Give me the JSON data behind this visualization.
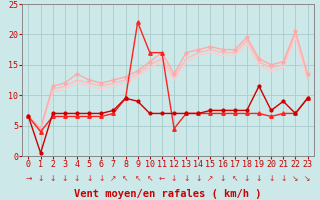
{
  "title": "",
  "xlabel": "Vent moyen/en rafales ( km/h )",
  "ylabel": "",
  "xlim": [
    -0.5,
    23.5
  ],
  "ylim": [
    0,
    25
  ],
  "xticks": [
    0,
    1,
    2,
    3,
    4,
    5,
    6,
    7,
    8,
    9,
    10,
    11,
    12,
    13,
    14,
    15,
    16,
    17,
    18,
    19,
    20,
    21,
    22,
    23
  ],
  "yticks": [
    0,
    5,
    10,
    15,
    20,
    25
  ],
  "bg_color": "#cce8e8",
  "grid_color": "#aacccc",
  "series": [
    {
      "x": [
        0,
        1,
        2,
        3,
        4,
        5,
        6,
        7,
        8,
        9,
        10,
        11,
        12,
        13,
        14,
        15,
        16,
        17,
        18,
        19,
        20,
        21,
        22,
        23
      ],
      "y": [
        6.5,
        4.5,
        11.5,
        12.0,
        13.5,
        12.5,
        12.0,
        12.5,
        13.0,
        14.0,
        15.5,
        17.0,
        13.5,
        17.0,
        17.5,
        18.0,
        17.5,
        17.5,
        19.5,
        16.0,
        15.0,
        15.5,
        20.5,
        13.5
      ],
      "color": "#ffaaaa",
      "marker": "o",
      "markersize": 2.0,
      "linewidth": 1.0
    },
    {
      "x": [
        0,
        1,
        2,
        3,
        4,
        5,
        6,
        7,
        8,
        9,
        10,
        11,
        12,
        13,
        14,
        15,
        16,
        17,
        18,
        19,
        20,
        21,
        22,
        23
      ],
      "y": [
        6.5,
        4.5,
        11.0,
        11.5,
        12.5,
        12.0,
        11.5,
        12.0,
        12.5,
        13.5,
        15.0,
        16.0,
        13.0,
        16.0,
        17.0,
        17.5,
        17.0,
        17.0,
        19.0,
        15.5,
        14.5,
        15.0,
        20.0,
        13.0
      ],
      "color": "#ffbbbb",
      "marker": null,
      "markersize": 0,
      "linewidth": 1.0
    },
    {
      "x": [
        0,
        1,
        2,
        3,
        4,
        5,
        6,
        7,
        8,
        9,
        10,
        11,
        12,
        13,
        14,
        15,
        16,
        17,
        18,
        19,
        20,
        21,
        22,
        23
      ],
      "y": [
        6.5,
        4.5,
        10.5,
        11.0,
        12.0,
        11.5,
        11.0,
        11.5,
        12.0,
        13.0,
        14.5,
        15.5,
        12.5,
        15.5,
        16.5,
        17.0,
        16.5,
        16.5,
        18.5,
        15.0,
        14.0,
        14.5,
        19.5,
        12.5
      ],
      "color": "#ffcccc",
      "marker": null,
      "markersize": 0,
      "linewidth": 1.0
    },
    {
      "x": [
        0,
        1,
        2,
        3,
        4,
        5,
        6,
        7,
        8,
        9,
        10,
        11,
        12,
        13,
        14,
        15,
        16,
        17,
        18,
        19,
        20,
        21,
        22,
        23
      ],
      "y": [
        6.5,
        4.0,
        6.5,
        6.5,
        6.5,
        6.5,
        6.5,
        7.0,
        9.5,
        22.0,
        17.0,
        17.0,
        4.5,
        7.0,
        7.0,
        7.0,
        7.0,
        7.0,
        7.0,
        7.0,
        6.5,
        7.0,
        7.0,
        9.5
      ],
      "color": "#ff2222",
      "marker": "^",
      "markersize": 2.5,
      "linewidth": 1.0
    },
    {
      "x": [
        0,
        1,
        2,
        3,
        4,
        5,
        6,
        7,
        8,
        9,
        10,
        11,
        12,
        13,
        14,
        15,
        16,
        17,
        18,
        19,
        20,
        21,
        22,
        23
      ],
      "y": [
        6.5,
        0.5,
        7.0,
        7.0,
        7.0,
        7.0,
        7.0,
        7.5,
        9.5,
        9.0,
        7.0,
        7.0,
        7.0,
        7.0,
        7.0,
        7.5,
        7.5,
        7.5,
        7.5,
        11.5,
        7.5,
        9.0,
        7.0,
        9.5
      ],
      "color": "#cc0000",
      "marker": "o",
      "markersize": 2.0,
      "linewidth": 1.0
    }
  ],
  "arrow_chars": [
    "→",
    "↓",
    "↓",
    "↓",
    "↓",
    "↓",
    "↓",
    "↗",
    "↖",
    "↖",
    "↖",
    "←",
    "↓",
    "↓",
    "↓",
    "↗",
    "↓",
    "↖",
    "↓",
    "↓",
    "↓",
    "↓",
    "↘",
    "↘"
  ],
  "wind_arrow_color": "#cc2222",
  "wind_arrow_fontsize": 5.5,
  "xlabel_color": "#cc0000",
  "xlabel_fontsize": 7.5,
  "tick_color": "#cc0000",
  "tick_fontsize": 6.0
}
